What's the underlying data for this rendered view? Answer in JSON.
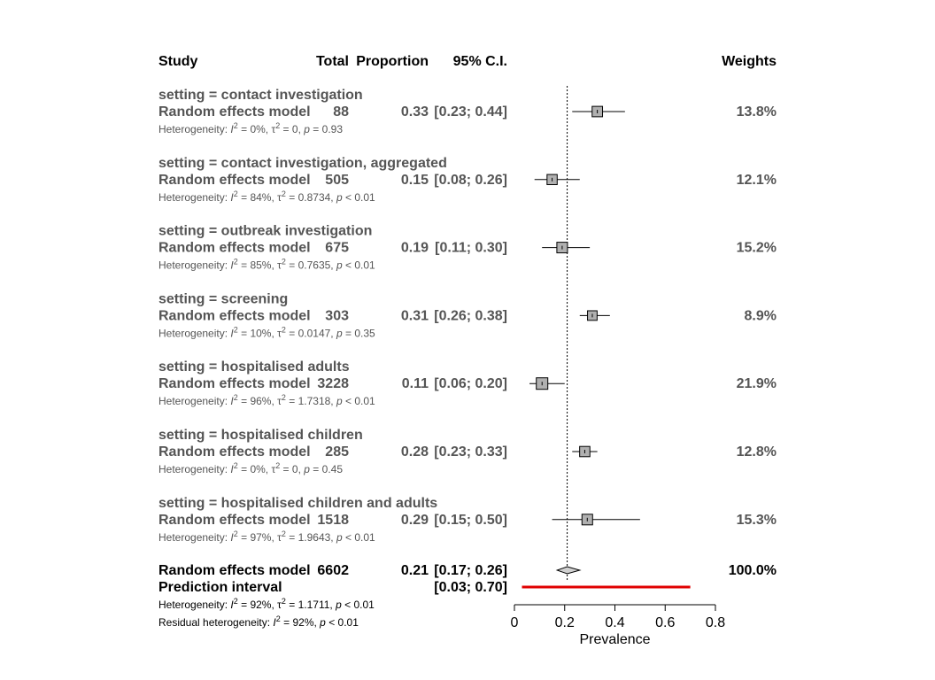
{
  "headers": {
    "study": "Study",
    "total": "Total",
    "proportion": "Proportion",
    "ci": "95% C.I.",
    "weights": "Weights"
  },
  "chart_data": {
    "type": "forest",
    "xlabel": "Prevalence",
    "xlim": [
      0,
      0.8
    ],
    "xticks": [
      "0",
      "0.2",
      "0.4",
      "0.6",
      "0.8"
    ],
    "reference_line": 0.21,
    "groups": [
      {
        "setting": "setting = contact investigation",
        "model": "Random effects model",
        "total": "88",
        "proportion": 0.33,
        "ci_low": 0.23,
        "ci_high": 0.44,
        "proportion_text": "0.33",
        "ci_text": "[0.23; 0.44]",
        "weight": "13.8%",
        "weight_value": 13.8,
        "het": {
          "i2": "0%",
          "tau2": "0",
          "p": "= 0.93"
        }
      },
      {
        "setting": "setting = contact investigation, aggregated",
        "model": "Random effects model",
        "total": "505",
        "proportion": 0.15,
        "ci_low": 0.08,
        "ci_high": 0.26,
        "proportion_text": "0.15",
        "ci_text": "[0.08; 0.26]",
        "weight": "12.1%",
        "weight_value": 12.1,
        "het": {
          "i2": "84%",
          "tau2": "0.8734",
          "p": "< 0.01"
        }
      },
      {
        "setting": "setting = outbreak investigation",
        "model": "Random effects model",
        "total": "675",
        "proportion": 0.19,
        "ci_low": 0.11,
        "ci_high": 0.3,
        "proportion_text": "0.19",
        "ci_text": "[0.11; 0.30]",
        "weight": "15.2%",
        "weight_value": 15.2,
        "het": {
          "i2": "85%",
          "tau2": "0.7635",
          "p": "< 0.01"
        }
      },
      {
        "setting": "setting = screening",
        "model": "Random effects model",
        "total": "303",
        "proportion": 0.31,
        "ci_low": 0.26,
        "ci_high": 0.38,
        "proportion_text": "0.31",
        "ci_text": "[0.26; 0.38]",
        "weight": "8.9%",
        "weight_value": 8.9,
        "het": {
          "i2": "10%",
          "tau2": "0.0147",
          "p": "= 0.35"
        }
      },
      {
        "setting": "setting = hospitalised adults",
        "model": "Random effects model",
        "total": "3228",
        "proportion": 0.11,
        "ci_low": 0.06,
        "ci_high": 0.2,
        "proportion_text": "0.11",
        "ci_text": "[0.06; 0.20]",
        "weight": "21.9%",
        "weight_value": 21.9,
        "het": {
          "i2": "96%",
          "tau2": "1.7318",
          "p": "< 0.01"
        }
      },
      {
        "setting": "setting = hospitalised children",
        "model": "Random effects model",
        "total": "285",
        "proportion": 0.28,
        "ci_low": 0.23,
        "ci_high": 0.33,
        "proportion_text": "0.28",
        "ci_text": "[0.23; 0.33]",
        "weight": "12.8%",
        "weight_value": 12.8,
        "het": {
          "i2": "0%",
          "tau2": "0",
          "p": "= 0.45"
        }
      },
      {
        "setting": "setting = hospitalised children and adults",
        "model": "Random effects model",
        "total": "1518",
        "proportion": 0.29,
        "ci_low": 0.15,
        "ci_high": 0.5,
        "proportion_text": "0.29",
        "ci_text": "[0.15; 0.50]",
        "weight": "15.3%",
        "weight_value": 15.3,
        "het": {
          "i2": "97%",
          "tau2": "1.9643",
          "p": "< 0.01"
        }
      }
    ],
    "overall": {
      "model": "Random effects model",
      "total": "6602",
      "proportion": 0.21,
      "ci_low": 0.17,
      "ci_high": 0.26,
      "proportion_text": "0.21",
      "ci_text": "[0.17; 0.26]",
      "weight": "100.0%",
      "prediction_label": "Prediction interval",
      "prediction_text": "[0.03; 0.70]",
      "prediction_low": 0.03,
      "prediction_high": 0.7,
      "prediction_color": "#e00000",
      "het": {
        "i2": "92%",
        "tau2": "1.1711",
        "p": "< 0.01"
      },
      "resid_het": {
        "i2": "92%",
        "p": "< 0.01"
      }
    },
    "labels": {
      "heterogeneity": "Heterogeneity: ",
      "residual": "Residual heterogeneity: ",
      "i": "I",
      "tau": "τ",
      "sup": "2",
      "p": "p"
    }
  }
}
